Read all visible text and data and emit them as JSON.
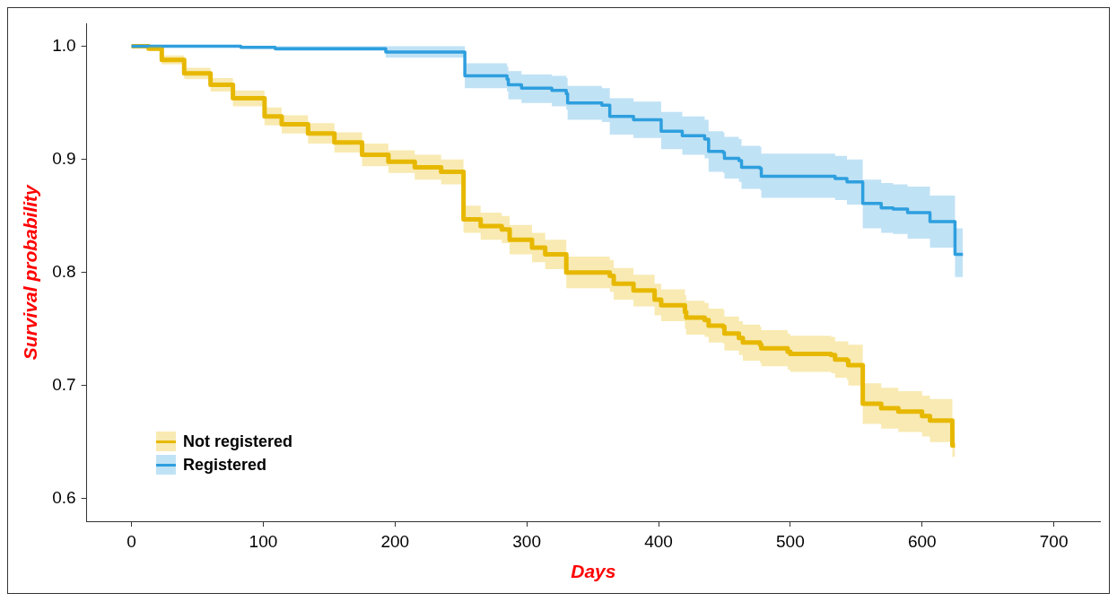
{
  "chart_data": {
    "type": "step",
    "xlabel": "Days",
    "ylabel": "Survival probability",
    "xlim": [
      -34,
      735
    ],
    "ylim": [
      0.58,
      1.02
    ],
    "xticks": [
      0,
      100,
      200,
      300,
      400,
      500,
      600,
      700
    ],
    "yticks": [
      0.6,
      0.7,
      0.8,
      0.9,
      {
        "value": 1,
        "label": "1.0"
      }
    ],
    "grid": false,
    "legend": "bottom left",
    "series": [
      {
        "name": "Not registered",
        "color": "#e7b800",
        "x": [
          0,
          13,
          23,
          40,
          60,
          77,
          101,
          114,
          134,
          154,
          175,
          195,
          215,
          235,
          252,
          265,
          281,
          287,
          304,
          314,
          330,
          363,
          366,
          381,
          397,
          402,
          420,
          421,
          435,
          438,
          449,
          450,
          461,
          464,
          477,
          478,
          498,
          500,
          531,
          534,
          543,
          544,
          555,
          569,
          582,
          600,
          606,
          623,
          625
        ],
        "values": [
          1.0,
          0.998,
          0.988,
          0.976,
          0.966,
          0.954,
          0.938,
          0.931,
          0.923,
          0.915,
          0.904,
          0.898,
          0.893,
          0.889,
          0.847,
          0.841,
          0.838,
          0.829,
          0.822,
          0.816,
          0.8,
          0.797,
          0.79,
          0.784,
          0.776,
          0.771,
          0.765,
          0.76,
          0.758,
          0.753,
          0.752,
          0.746,
          0.742,
          0.738,
          0.736,
          0.733,
          0.73,
          0.728,
          0.727,
          0.723,
          0.722,
          0.718,
          0.684,
          0.68,
          0.677,
          0.673,
          0.669,
          0.647,
          0.647
        ],
        "lower": [
          1.0,
          0.996,
          0.984,
          0.971,
          0.96,
          0.947,
          0.93,
          0.923,
          0.914,
          0.906,
          0.894,
          0.888,
          0.882,
          0.878,
          0.835,
          0.829,
          0.826,
          0.816,
          0.809,
          0.803,
          0.786,
          0.783,
          0.776,
          0.77,
          0.762,
          0.757,
          0.75,
          0.745,
          0.743,
          0.738,
          0.737,
          0.731,
          0.727,
          0.722,
          0.72,
          0.717,
          0.714,
          0.712,
          0.711,
          0.707,
          0.705,
          0.7,
          0.666,
          0.662,
          0.659,
          0.655,
          0.65,
          0.637,
          0.637
        ],
        "upper": [
          1.0,
          1.0,
          0.992,
          0.981,
          0.972,
          0.961,
          0.946,
          0.939,
          0.932,
          0.924,
          0.914,
          0.908,
          0.904,
          0.9,
          0.859,
          0.853,
          0.85,
          0.842,
          0.835,
          0.829,
          0.814,
          0.811,
          0.804,
          0.798,
          0.79,
          0.785,
          0.78,
          0.775,
          0.773,
          0.768,
          0.767,
          0.761,
          0.757,
          0.754,
          0.752,
          0.749,
          0.746,
          0.744,
          0.743,
          0.739,
          0.739,
          0.736,
          0.702,
          0.698,
          0.695,
          0.691,
          0.688,
          0.657,
          0.657
        ]
      },
      {
        "name": "Registered",
        "color": "#2e9fdf",
        "x": [
          0,
          83,
          109,
          193,
          253,
          285,
          286,
          296,
          319,
          330,
          331,
          357,
          363,
          381,
          402,
          418,
          435,
          438,
          449,
          450,
          461,
          463,
          477,
          478,
          534,
          543,
          555,
          569,
          578,
          589,
          606,
          625,
          631
        ],
        "values": [
          1.0,
          0.999,
          0.998,
          0.995,
          0.974,
          0.971,
          0.966,
          0.963,
          0.961,
          0.958,
          0.95,
          0.948,
          0.938,
          0.935,
          0.925,
          0.921,
          0.918,
          0.907,
          0.906,
          0.901,
          0.899,
          0.893,
          0.892,
          0.885,
          0.883,
          0.88,
          0.861,
          0.857,
          0.856,
          0.853,
          0.845,
          0.816,
          0.816
        ],
        "lower": [
          1.0,
          0.998,
          0.996,
          0.99,
          0.963,
          0.96,
          0.953,
          0.95,
          0.947,
          0.944,
          0.935,
          0.933,
          0.922,
          0.919,
          0.909,
          0.904,
          0.901,
          0.889,
          0.888,
          0.883,
          0.88,
          0.874,
          0.873,
          0.866,
          0.864,
          0.86,
          0.839,
          0.835,
          0.834,
          0.83,
          0.822,
          0.796,
          0.796
        ],
        "upper": [
          1.0,
          1.0,
          1.0,
          1.0,
          0.985,
          0.982,
          0.978,
          0.975,
          0.974,
          0.972,
          0.965,
          0.963,
          0.954,
          0.951,
          0.942,
          0.938,
          0.935,
          0.925,
          0.924,
          0.92,
          0.918,
          0.912,
          0.911,
          0.905,
          0.903,
          0.9,
          0.882,
          0.879,
          0.878,
          0.876,
          0.868,
          0.839,
          0.839
        ]
      }
    ]
  }
}
